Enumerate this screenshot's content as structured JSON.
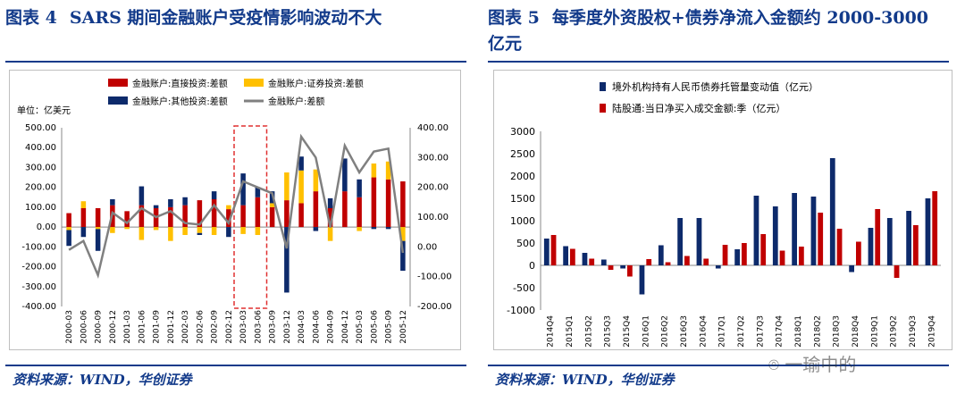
{
  "left": {
    "title_label": "图表 4",
    "title_text": "SARS 期间金融账户受疫情影响波动不大",
    "source": "资料来源：WIND，华创证券",
    "colors": {
      "direct": "#c00000",
      "securities": "#ffc000",
      "other": "#0d2a6b",
      "net": "#808080",
      "highlight": "#e03030"
    },
    "chart_data": {
      "type": "bar",
      "stacked": true,
      "unit_label": "单位：亿美元",
      "categories": [
        "2000-03",
        "2000-06",
        "2000-09",
        "2000-12",
        "2001-03",
        "2001-06",
        "2001-09",
        "2001-12",
        "2002-03",
        "2002-06",
        "2002-09",
        "2002-12",
        "2003-03",
        "2003-06",
        "2003-09",
        "2003-12",
        "2004-03",
        "2004-06",
        "2004-09",
        "2004-12",
        "2005-03",
        "2005-06",
        "2005-09",
        "2005-12"
      ],
      "category_quarters": 24,
      "tick_labels": [
        "2000-03",
        "2000-06",
        "2000-09",
        "2000-12",
        "2001-03",
        "2001-06",
        "2001-09",
        "2001-12",
        "2002-03",
        "2002-06",
        "2002-09",
        "2002-12",
        "2003-03",
        "2003-06",
        "2003-09",
        "2003-12",
        "2004-03",
        "2004-06",
        "2004-09",
        "2004-12",
        "2005-03",
        "2005-06",
        "2005-09",
        "2005-12"
      ],
      "left_axis": {
        "ylim": [
          -400,
          500
        ],
        "ticks": [
          "500.00",
          "400.00",
          "300.00",
          "200.00",
          "100.00",
          "0.00",
          "-100.00",
          "-200.00",
          "-300.00",
          "-400.00"
        ]
      },
      "right_axis": {
        "ylim": [
          -200,
          400
        ],
        "ticks": [
          "400.00",
          "300.00",
          "200.00",
          "100.00",
          "0.00",
          "-100.00",
          "-200.00"
        ]
      },
      "legend": [
        "金融账户:直接投资:差额",
        "金融账户:证券投资:差额",
        "金融账户:其他投资:差额",
        "金融账户:差额"
      ],
      "legend_position": "top",
      "series": [
        {
          "name": "金融账户:直接投资:差额",
          "values": [
            70,
            95,
            95,
            110,
            80,
            110,
            95,
            100,
            110,
            135,
            140,
            90,
            110,
            150,
            100,
            135,
            120,
            180,
            95,
            180,
            150,
            250,
            240,
            230
          ]
        },
        {
          "name": "金融账户:证券投资:差额",
          "values": [
            -15,
            35,
            -10,
            -30,
            -10,
            -65,
            -15,
            -70,
            -40,
            -30,
            -40,
            20,
            -35,
            -40,
            20,
            140,
            165,
            110,
            -70,
            0,
            -20,
            70,
            90,
            -70
          ]
        },
        {
          "name": "金融账户:其他投资:差额",
          "values": [
            -80,
            -50,
            -110,
            30,
            0,
            95,
            15,
            40,
            40,
            -10,
            40,
            -50,
            160,
            50,
            60,
            -330,
            70,
            -20,
            50,
            165,
            90,
            -10,
            -10,
            -150
          ]
        },
        {
          "name": "金融账户:差额",
          "axis": "right",
          "values": [
            -10,
            20,
            -95,
            115,
            80,
            130,
            100,
            120,
            80,
            75,
            140,
            80,
            220,
            200,
            180,
            -5,
            370,
            300,
            65,
            340,
            250,
            320,
            330,
            -20
          ]
        }
      ],
      "highlight_categories": [
        "2003-03",
        "2003-06"
      ]
    }
  },
  "right": {
    "title_label": "图表 5",
    "title_text_line1": "每季度外资股权+债券净流入金额约 2000-3000",
    "title_text_line2": "亿元",
    "source": "资料来源：WIND，华创证券",
    "colors": {
      "bond": "#0d2a6b",
      "connect": "#c00000"
    },
    "chart_data": {
      "type": "bar",
      "categories": [
        "2014Q4",
        "2015Q1",
        "2015Q2",
        "2015Q3",
        "2015Q4",
        "2016Q1",
        "2016Q2",
        "2016Q3",
        "2016Q4",
        "2017Q1",
        "2017Q2",
        "2017Q3",
        "2017Q4",
        "2018Q1",
        "2018Q2",
        "2018Q3",
        "2018Q4",
        "2019Q1",
        "2019Q2",
        "2019Q3",
        "2019Q4"
      ],
      "ylim": [
        -1000,
        3000
      ],
      "ticks": [
        "3000",
        "2500",
        "2000",
        "1500",
        "1000",
        "500",
        "0",
        "-500",
        "-1000"
      ],
      "legend": [
        "境外机构持有人民币债券托管量变动值（亿元）",
        "陆股通:当日净买入成交金额:季（亿元）"
      ],
      "legend_position": "top-left",
      "series": [
        {
          "name": "境外机构持有人民币债券托管量变动值（亿元）",
          "values": [
            600,
            430,
            280,
            130,
            -70,
            -650,
            450,
            1060,
            1060,
            -70,
            360,
            1560,
            1320,
            1620,
            1540,
            2400,
            -150,
            840,
            1060,
            1220,
            1500
          ]
        },
        {
          "name": "陆股通:当日净买入成交金额:季（亿元）",
          "values": [
            680,
            370,
            150,
            -100,
            -250,
            140,
            70,
            210,
            150,
            460,
            500,
            700,
            330,
            420,
            1180,
            820,
            530,
            1260,
            -280,
            900,
            1660
          ]
        }
      ]
    }
  },
  "watermark": "一瑜中的"
}
